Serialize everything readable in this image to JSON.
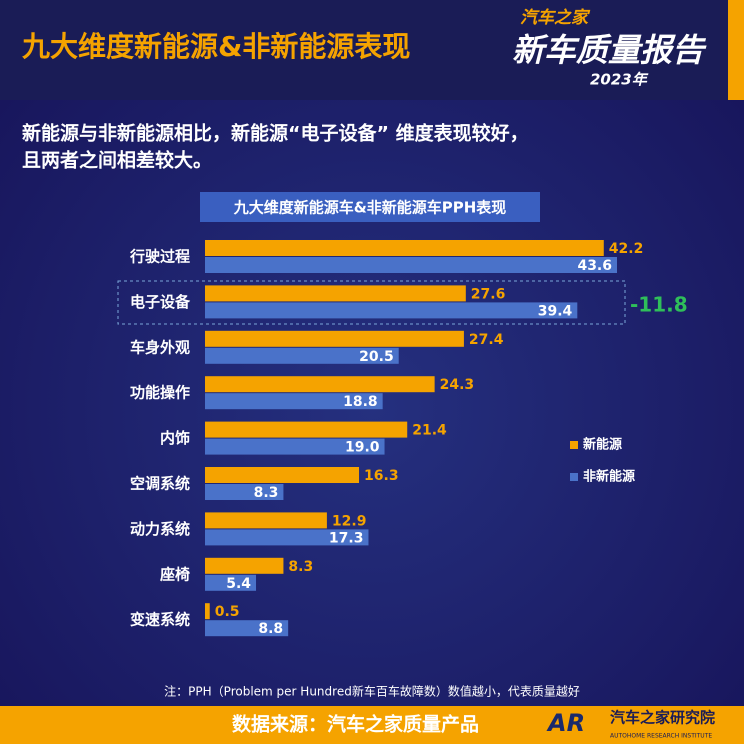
{
  "header": {
    "title": "九大维度新能源&非新能源表现",
    "logo_top": "汽车之家",
    "logo_main": "新车质量报告",
    "logo_year": "2023年"
  },
  "summary": [
    "新能源与非新能源相比，新能源“电子设备” 维度表现较好，",
    "且两者之间相差较大。"
  ],
  "chart_data": {
    "type": "hbar",
    "title": "九大维度新能源车&非新能源车PPH表现",
    "categories": [
      "行驶过程",
      "电子设备",
      "车身外观",
      "功能操作",
      "内饰",
      "空调系统",
      "动力系统",
      "座椅",
      "变速系统"
    ],
    "series": [
      {
        "name": "新能源",
        "color": "#f5a300",
        "values": [
          42.2,
          27.6,
          27.4,
          24.3,
          21.4,
          16.3,
          12.9,
          8.3,
          0.5
        ]
      },
      {
        "name": "非新能源",
        "color": "#4a72c9",
        "values": [
          43.6,
          39.4,
          20.5,
          18.8,
          19,
          8.3,
          17.3,
          5.4,
          8.8
        ],
        "value_labels": [
          "43.6",
          "39.4",
          "20.5",
          "18.8",
          "19.0",
          "8.3",
          "17.3",
          "5.4",
          "8.8"
        ]
      }
    ],
    "annotation": "-11.8",
    "note": "注：PPH（Problem per Hundred新车百车故障数）数值越小，代表质量越好"
  },
  "footer": {
    "source": "数据来源：汽车之家质量产品",
    "brand_mark": "AR",
    "brand": "汽车之家研究院",
    "brand_en": "AUTOHOME RESEARCH INSTITUTE"
  }
}
